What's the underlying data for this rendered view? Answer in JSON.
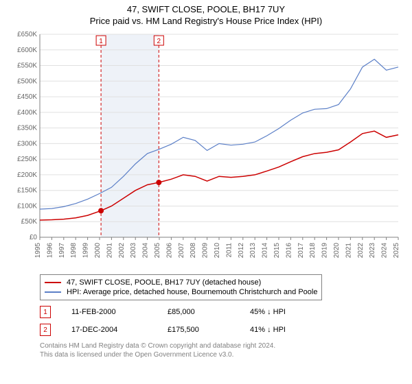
{
  "title": {
    "main": "47, SWIFT CLOSE, POOLE, BH17 7UY",
    "sub": "Price paid vs. HM Land Registry's House Price Index (HPI)",
    "fontsize": 13
  },
  "chart": {
    "type": "line",
    "background_color": "#ffffff",
    "grid_color": "#e0e0e0",
    "axis_color": "#808080",
    "axis_font_color": "#666666",
    "axis_fontsize": 10,
    "xlim": [
      1995,
      2025
    ],
    "ylim": [
      0,
      650000
    ],
    "ytick_step": 50000,
    "ytick_prefix": "£",
    "ytick_suffix": "K",
    "ytick_divisor": 1000,
    "xticks": [
      1995,
      1996,
      1997,
      1998,
      1999,
      2000,
      2001,
      2002,
      2003,
      2004,
      2005,
      2006,
      2007,
      2008,
      2009,
      2010,
      2011,
      2012,
      2013,
      2014,
      2015,
      2016,
      2017,
      2018,
      2019,
      2020,
      2021,
      2022,
      2023,
      2024,
      2025
    ],
    "shaded_band": {
      "x_start": 2000.12,
      "x_end": 2004.96,
      "fill": "#eef2f8"
    },
    "series": [
      {
        "name": "price_paid",
        "label": "47, SWIFT CLOSE, POOLE, BH17 7UY (detached house)",
        "color": "#cc0000",
        "line_width": 1.5,
        "points": [
          [
            1995,
            55000
          ],
          [
            1996,
            56000
          ],
          [
            1997,
            58000
          ],
          [
            1998,
            62000
          ],
          [
            1999,
            70000
          ],
          [
            2000.12,
            85000
          ],
          [
            2001,
            100000
          ],
          [
            2002,
            125000
          ],
          [
            2003,
            150000
          ],
          [
            2004,
            168000
          ],
          [
            2004.96,
            175500
          ],
          [
            2005,
            176000
          ],
          [
            2006,
            186000
          ],
          [
            2007,
            200000
          ],
          [
            2008,
            195000
          ],
          [
            2009,
            180000
          ],
          [
            2010,
            195000
          ],
          [
            2011,
            192000
          ],
          [
            2012,
            195000
          ],
          [
            2013,
            200000
          ],
          [
            2014,
            212000
          ],
          [
            2015,
            225000
          ],
          [
            2016,
            242000
          ],
          [
            2017,
            258000
          ],
          [
            2018,
            268000
          ],
          [
            2019,
            272000
          ],
          [
            2020,
            280000
          ],
          [
            2021,
            305000
          ],
          [
            2022,
            332000
          ],
          [
            2023,
            340000
          ],
          [
            2024,
            320000
          ],
          [
            2025,
            328000
          ]
        ]
      },
      {
        "name": "hpi",
        "label": "HPI: Average price, detached house, Bournemouth Christchurch and Poole",
        "color": "#5b7fc7",
        "line_width": 1.2,
        "points": [
          [
            1995,
            90000
          ],
          [
            1996,
            92000
          ],
          [
            1997,
            98000
          ],
          [
            1998,
            108000
          ],
          [
            1999,
            122000
          ],
          [
            2000,
            140000
          ],
          [
            2001,
            160000
          ],
          [
            2002,
            195000
          ],
          [
            2003,
            235000
          ],
          [
            2004,
            268000
          ],
          [
            2005,
            282000
          ],
          [
            2006,
            298000
          ],
          [
            2007,
            320000
          ],
          [
            2008,
            310000
          ],
          [
            2009,
            278000
          ],
          [
            2010,
            300000
          ],
          [
            2011,
            295000
          ],
          [
            2012,
            298000
          ],
          [
            2013,
            305000
          ],
          [
            2014,
            325000
          ],
          [
            2015,
            348000
          ],
          [
            2016,
            375000
          ],
          [
            2017,
            398000
          ],
          [
            2018,
            410000
          ],
          [
            2019,
            412000
          ],
          [
            2020,
            425000
          ],
          [
            2021,
            475000
          ],
          [
            2022,
            545000
          ],
          [
            2023,
            570000
          ],
          [
            2024,
            535000
          ],
          [
            2025,
            545000
          ]
        ]
      }
    ],
    "sale_markers": [
      {
        "n": "1",
        "x": 2000.12,
        "y_chart": 85000,
        "y_label": 620000,
        "line_color": "#cc0000",
        "line_dash": "4 3"
      },
      {
        "n": "2",
        "x": 2004.96,
        "y_chart": 175500,
        "y_label": 620000,
        "line_color": "#cc0000",
        "line_dash": "4 3"
      }
    ],
    "marker_dot": {
      "radius": 4,
      "fill": "#cc0000"
    }
  },
  "legend": {
    "border_color": "#808080",
    "fontsize": 11,
    "items": [
      {
        "color": "#cc0000",
        "text": "47, SWIFT CLOSE, POOLE, BH17 7UY (detached house)"
      },
      {
        "color": "#5b7fc7",
        "text": "HPI: Average price, detached house, Bournemouth Christchurch and Poole"
      }
    ]
  },
  "sales": [
    {
      "n": "1",
      "date": "11-FEB-2000",
      "price": "£85,000",
      "delta": "45% ↓ HPI"
    },
    {
      "n": "2",
      "date": "17-DEC-2004",
      "price": "£175,500",
      "delta": "41% ↓ HPI"
    }
  ],
  "footer": {
    "line1": "Contains HM Land Registry data © Crown copyright and database right 2024.",
    "line2": "This data is licensed under the Open Government Licence v3.0.",
    "color": "#808080",
    "fontsize": 10
  }
}
